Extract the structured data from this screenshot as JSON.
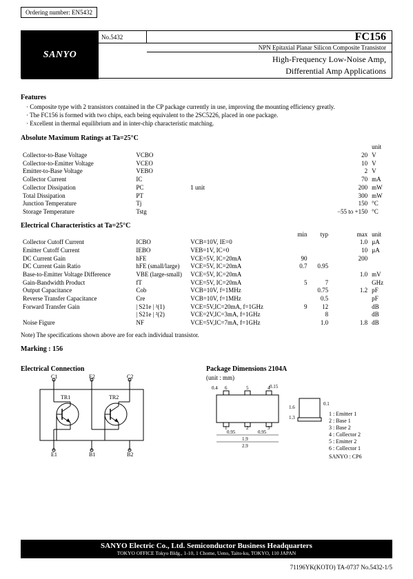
{
  "ordering": "Ordering number: EN5432",
  "header": {
    "logo": "SANYO",
    "doc_no": "No.5432",
    "part_no": "FC156",
    "subtitle": "NPN Epitaxial Planar Silicon Composite Transistor",
    "title_line1": "High-Frequency Low-Noise Amp,",
    "title_line2": "Differential Amp Applications"
  },
  "features": {
    "heading": "Features",
    "items": [
      "· Composite type with 2 transistors contained in the CP package currently in use, improving the mounting efficiency greatly.",
      "· The FC156 is formed with two chips, each being equivalent to the 2SC5226, placed in one package.",
      "· Excellent in thermal equilibrium and in inter-chip characteristic matching."
    ]
  },
  "abs_max": {
    "heading": "Absolute Maximum Ratings at Ta=25°C",
    "unit_label": "unit",
    "rows": [
      {
        "param": "Collector-to-Base Voltage",
        "sym": "VCBO",
        "cond": "",
        "val": "20",
        "unit": "V"
      },
      {
        "param": "Collector-to-Emitter Voltage",
        "sym": "VCEO",
        "cond": "",
        "val": "10",
        "unit": "V"
      },
      {
        "param": "Emitter-to-Base Voltage",
        "sym": "VEBO",
        "cond": "",
        "val": "2",
        "unit": "V"
      },
      {
        "param": "Collector Current",
        "sym": "IC",
        "cond": "",
        "val": "70",
        "unit": "mA"
      },
      {
        "param": "Collector Dissipation",
        "sym": "PC",
        "cond": "1 unit",
        "val": "200",
        "unit": "mW"
      },
      {
        "param": "Total Dissipation",
        "sym": "PT",
        "cond": "",
        "val": "300",
        "unit": "mW"
      },
      {
        "param": "Junction Temperature",
        "sym": "Tj",
        "cond": "",
        "val": "150",
        "unit": "°C"
      },
      {
        "param": "Storage Temperature",
        "sym": "Tstg",
        "cond": "",
        "val": "−55 to +150",
        "unit": "°C"
      }
    ]
  },
  "elec_char": {
    "heading": "Electrical Characteristics at Ta=25°C",
    "col_min": "min",
    "col_typ": "typ",
    "col_max": "max",
    "col_unit": "unit",
    "rows": [
      {
        "param": "Collector Cutoff Current",
        "sym": "ICBO",
        "cond": "VCB=10V, IE=0",
        "min": "",
        "typ": "",
        "max": "1.0",
        "unit": "µA"
      },
      {
        "param": "Emitter Cutoff Current",
        "sym": "IEBO",
        "cond": "VEB=1V, IC=0",
        "min": "",
        "typ": "",
        "max": "10",
        "unit": "µA"
      },
      {
        "param": "DC Current Gain",
        "sym": "hFE",
        "cond": "VCE=5V, IC=20mA",
        "min": "90",
        "typ": "",
        "max": "200",
        "unit": ""
      },
      {
        "param": "DC Current Gain Ratio",
        "sym": "hFE (small/large)",
        "cond": "VCE=5V, IC=20mA",
        "min": "0.7",
        "typ": "0.95",
        "max": "",
        "unit": ""
      },
      {
        "param": "Base-to-Emitter Voltage Difference",
        "sym": "VBE (large-small)",
        "cond": "VCE=5V, IC=20mA",
        "min": "",
        "typ": "",
        "max": "1.0",
        "unit": "mV"
      },
      {
        "param": "Gain-Bandwidth Product",
        "sym": "fT",
        "cond": "VCE=5V, IC=20mA",
        "min": "5",
        "typ": "7",
        "max": "",
        "unit": "GHz"
      },
      {
        "param": "Output Capacitance",
        "sym": "Cob",
        "cond": "VCB=10V, f=1MHz",
        "min": "",
        "typ": "0.75",
        "max": "1.2",
        "unit": "pF"
      },
      {
        "param": "Reverse Transfer Capacitance",
        "sym": "Cre",
        "cond": "VCB=10V, f=1MHz",
        "min": "",
        "typ": "0.5",
        "max": "",
        "unit": "pF"
      },
      {
        "param": "Forward Transfer Gain",
        "sym": "| S21e | ²(1)",
        "cond": "VCE=5V,IC=20mA, f=1GHz",
        "min": "9",
        "typ": "12",
        "max": "",
        "unit": "dB"
      },
      {
        "param": "",
        "sym": "| S21e | ²(2)",
        "cond": "VCE=2V,IC=3mA, f=1GHz",
        "min": "",
        "typ": "8",
        "max": "",
        "unit": "dB"
      },
      {
        "param": "Noise Figure",
        "sym": "NF",
        "cond": "VCE=5V,IC=7mA, f=1GHz",
        "min": "",
        "typ": "1.0",
        "max": "1.8",
        "unit": "dB"
      }
    ]
  },
  "note": "Note) The specifications shown above are for each individual transistor.",
  "marking": "Marking : 156",
  "elec_conn": {
    "heading": "Electrical Connection",
    "labels": {
      "c1": "C1",
      "e2": "E2",
      "c2": "C2",
      "e1": "E1",
      "b1": "B1",
      "b2": "B2",
      "tr1": "TR1",
      "tr2": "TR2"
    }
  },
  "pkg": {
    "heading": "Package Dimensions 2104A",
    "unit": "(unit : mm)",
    "dims": {
      "d04": "0.4",
      "d015": "0.15",
      "d01": "0.1",
      "d095a": "0.95",
      "d095b": "0.95",
      "d19": "1.9",
      "d29": "2.9",
      "d16": "1.6",
      "d13": "1.3"
    },
    "pins": {
      "p1": "1 : Emitter 1",
      "p2": "2 : Base 1",
      "p3": "3 : Base 2",
      "p4": "4 : Collector 2",
      "p5": "5 : Emitter 2",
      "p6": "6 : Collector 1"
    },
    "sanyo": "SANYO : CP6"
  },
  "footer": {
    "line1": "SANYO Electric Co., Ltd. Semiconductor Business Headquarters",
    "line2": "TOKYO OFFICE Tokyo Bldg., 1-10, 1 Chome, Ueno, Taito-ku, TOKYO, 110 JAPAN"
  },
  "page_foot": "71196YK(KOTO) TA-0737 No.5432-1/5"
}
